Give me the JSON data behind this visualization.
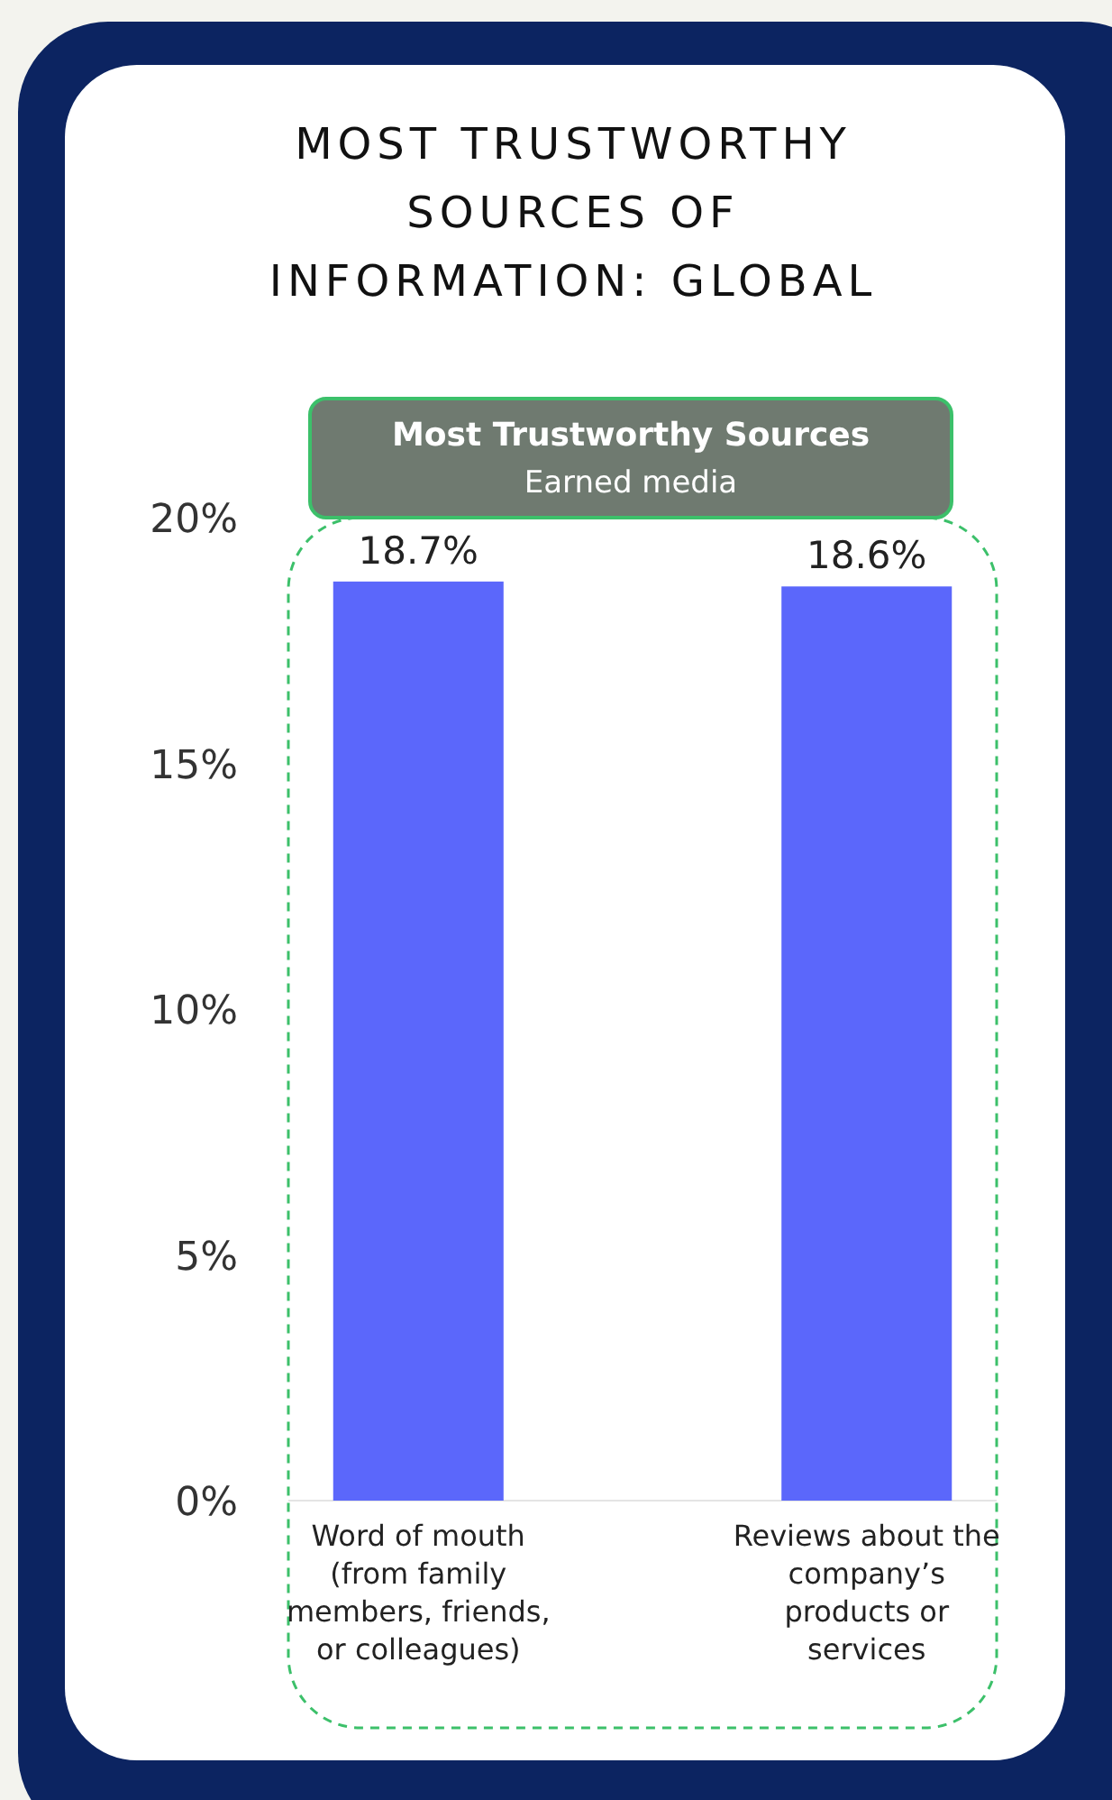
{
  "chart_data": {
    "type": "bar",
    "title": "MOST TRUSTWORTHY SOURCES OF INFORMATION: GLOBAL",
    "annotations": [
      "Most Trustworthy Sources",
      "Earned media"
    ],
    "categories": [
      "Word of mouth (from family members, friends, or colleagues)",
      "Reviews about the company’s products or services"
    ],
    "values": [
      18.7,
      18.6
    ],
    "value_labels": [
      "18.7%",
      "18.6%"
    ],
    "color": "#5b67fb",
    "ylim": [
      0,
      20
    ],
    "yticks": [
      {
        "value": 0,
        "label": "0%"
      },
      {
        "value": 5,
        "label": "5%"
      },
      {
        "value": 10,
        "label": "10%"
      },
      {
        "value": 15,
        "label": "15%"
      },
      {
        "value": 20,
        "label": "20%"
      }
    ],
    "grid": false
  }
}
